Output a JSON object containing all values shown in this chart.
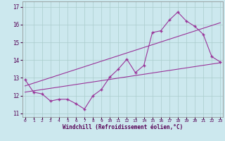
{
  "xlabel": "Windchill (Refroidissement éolien,°C)",
  "background_color": "#cce8ee",
  "grid_color": "#aacccc",
  "line_color": "#993399",
  "x_ticks": [
    0,
    1,
    2,
    3,
    4,
    5,
    6,
    7,
    8,
    9,
    10,
    11,
    12,
    13,
    14,
    15,
    16,
    17,
    18,
    19,
    20,
    21,
    22,
    23
  ],
  "y_ticks": [
    11,
    12,
    13,
    14,
    15,
    16,
    17
  ],
  "ylim": [
    10.8,
    17.3
  ],
  "xlim": [
    -0.3,
    23.3
  ],
  "line1_x": [
    0,
    1,
    2,
    3,
    4,
    5,
    6,
    7,
    8,
    9,
    10,
    11,
    12,
    13,
    14,
    15,
    16,
    17,
    18,
    19,
    20,
    21,
    22,
    23
  ],
  "line1_y": [
    12.9,
    12.2,
    12.1,
    11.7,
    11.8,
    11.8,
    11.55,
    11.25,
    12.0,
    12.35,
    13.05,
    13.5,
    14.05,
    13.3,
    13.7,
    15.55,
    15.65,
    16.25,
    16.7,
    16.2,
    15.9,
    15.45,
    14.2,
    13.9
  ],
  "line2_x": [
    0,
    23
  ],
  "line2_y": [
    12.2,
    13.85
  ],
  "line3_x": [
    0,
    23
  ],
  "line3_y": [
    12.55,
    16.1
  ]
}
